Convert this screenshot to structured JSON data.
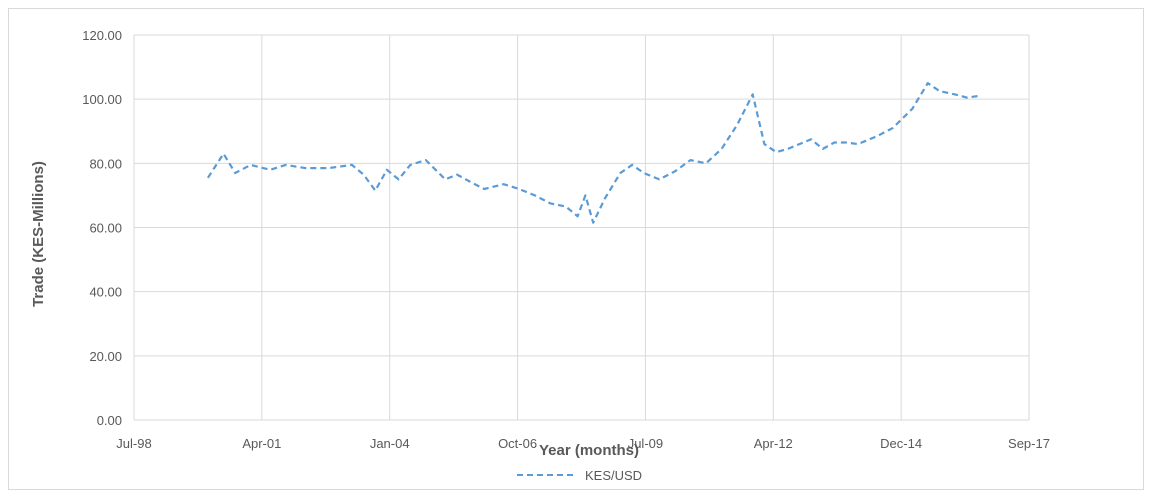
{
  "chart_data": {
    "type": "line",
    "title": "",
    "xlabel": "Year (months)",
    "ylabel": "Trade (KES-Millions)",
    "ylim": [
      0,
      120
    ],
    "y_ticks": [
      "0.00",
      "20.00",
      "40.00",
      "60.00",
      "80.00",
      "100.00",
      "120.00"
    ],
    "x_ticks": [
      "Jul-98",
      "Apr-01",
      "Jan-04",
      "Oct-06",
      "Jul-09",
      "Apr-12",
      "Dec-14",
      "Sep-17"
    ],
    "xlim": [
      "1998-07",
      "2017-09"
    ],
    "grid": "on",
    "legend_position": "bottom",
    "series": [
      {
        "name": "KES/USD",
        "color": "#5b9bd5",
        "style": "dashed",
        "x": [
          "2000-02",
          "2000-06",
          "2000-09",
          "2001-01",
          "2001-06",
          "2001-10",
          "2002-03",
          "2002-09",
          "2003-03",
          "2003-06",
          "2003-09",
          "2003-12",
          "2004-03",
          "2004-06",
          "2004-10",
          "2005-03",
          "2005-06",
          "2005-09",
          "2006-01",
          "2006-06",
          "2006-10",
          "2007-02",
          "2007-06",
          "2007-10",
          "2008-01",
          "2008-03",
          "2008-05",
          "2008-08",
          "2008-12",
          "2009-03",
          "2009-06",
          "2009-10",
          "2010-02",
          "2010-06",
          "2010-10",
          "2011-02",
          "2011-06",
          "2011-10",
          "2012-01",
          "2012-04",
          "2012-07",
          "2012-10",
          "2013-01",
          "2013-04",
          "2013-07",
          "2013-10",
          "2014-01",
          "2014-06",
          "2014-10",
          "2015-03",
          "2015-07",
          "2015-10",
          "2016-02",
          "2016-05",
          "2016-08"
        ],
        "y": [
          75.5,
          83.0,
          77.0,
          79.5,
          78.0,
          79.5,
          78.5,
          78.5,
          79.5,
          76.5,
          71.5,
          78.0,
          75.0,
          79.5,
          81.0,
          75.0,
          76.5,
          74.5,
          72.0,
          73.5,
          72.0,
          70.0,
          67.5,
          66.5,
          63.5,
          70.0,
          61.5,
          69.0,
          77.0,
          79.5,
          77.0,
          75.0,
          77.5,
          81.0,
          80.0,
          84.5,
          92.0,
          101.5,
          86.0,
          83.5,
          84.5,
          86.0,
          87.5,
          84.5,
          86.5,
          86.5,
          86.0,
          88.5,
          91.0,
          97.0,
          105.0,
          102.5,
          101.5,
          100.5,
          101.0
        ]
      }
    ]
  }
}
